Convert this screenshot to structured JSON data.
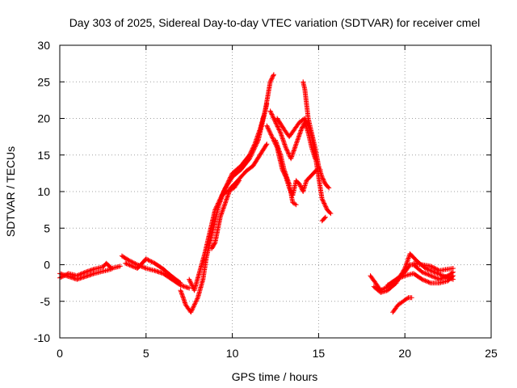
{
  "chart_data": {
    "type": "scatter",
    "title": "Day 303 of 2025, Sidereal Day-to-day VTEC variation (SDTVAR) for receiver cmel",
    "xlabel": "GPS time / hours",
    "ylabel": "SDTVAR / TECUs",
    "xlim": [
      0,
      25
    ],
    "ylim": [
      -10,
      30
    ],
    "xticks": [
      "0",
      "5",
      "10",
      "15",
      "20",
      "25"
    ],
    "yticks": [
      "-10",
      "-5",
      "0",
      "5",
      "10",
      "15",
      "20",
      "25",
      "30"
    ],
    "grid": true,
    "marker": "+",
    "series": [
      {
        "name": "SDTVAR",
        "color": "#ff0000",
        "tracks": [
          [
            [
              0.0,
              -1.8
            ],
            [
              0.5,
              -1.2
            ],
            [
              1.0,
              -1.5
            ],
            [
              1.5,
              -1.0
            ],
            [
              2.0,
              -0.6
            ],
            [
              2.5,
              -0.3
            ],
            [
              2.7,
              0.2
            ],
            [
              3.0,
              -0.5
            ],
            [
              3.5,
              -0.2
            ]
          ],
          [
            [
              0.0,
              -1.2
            ],
            [
              0.5,
              -1.6
            ],
            [
              1.0,
              -2.0
            ],
            [
              1.5,
              -1.6
            ],
            [
              2.0,
              -1.2
            ],
            [
              2.5,
              -0.9
            ],
            [
              3.0,
              -0.6
            ]
          ],
          [
            [
              3.6,
              1.2
            ],
            [
              4.0,
              0.6
            ],
            [
              4.5,
              0.0
            ],
            [
              5.0,
              -0.5
            ],
            [
              5.5,
              -0.8
            ],
            [
              6.0,
              -1.2
            ],
            [
              6.5,
              -2.0
            ],
            [
              7.0,
              -2.8
            ],
            [
              7.5,
              -3.2
            ]
          ],
          [
            [
              3.8,
              0.2
            ],
            [
              4.5,
              -0.5
            ],
            [
              5.0,
              0.8
            ],
            [
              5.5,
              0.2
            ],
            [
              6.0,
              -0.6
            ],
            [
              6.5,
              -1.6
            ],
            [
              7.0,
              -2.5
            ]
          ],
          [
            [
              7.0,
              -3.5
            ],
            [
              7.3,
              -5.5
            ],
            [
              7.6,
              -6.5
            ],
            [
              8.0,
              -4.5
            ],
            [
              8.3,
              -2.0
            ],
            [
              8.5,
              1.0
            ],
            [
              8.7,
              3.0
            ],
            [
              9.0,
              6.0
            ],
            [
              9.2,
              8.0
            ],
            [
              9.5,
              10.0
            ],
            [
              9.8,
              11.5
            ],
            [
              10.0,
              12.5
            ],
            [
              10.5,
              13.5
            ],
            [
              11.0,
              15.0
            ],
            [
              11.3,
              16.5
            ],
            [
              11.6,
              18.5
            ],
            [
              11.9,
              21.0
            ],
            [
              12.2,
              25.0
            ],
            [
              12.4,
              26.0
            ]
          ],
          [
            [
              7.5,
              -2.0
            ],
            [
              7.8,
              -3.5
            ],
            [
              8.1,
              -1.0
            ],
            [
              8.4,
              1.5
            ],
            [
              8.7,
              4.5
            ],
            [
              9.0,
              7.5
            ],
            [
              9.3,
              9.0
            ],
            [
              9.6,
              10.5
            ],
            [
              10.0,
              12.0
            ],
            [
              10.5,
              13.0
            ],
            [
              11.0,
              14.5
            ],
            [
              11.5,
              17.0
            ],
            [
              11.8,
              20.0
            ],
            [
              12.0,
              22.0
            ]
          ],
          [
            [
              8.8,
              2.2
            ],
            [
              9.0,
              3.0
            ],
            [
              9.3,
              6.5
            ],
            [
              9.6,
              8.5
            ],
            [
              9.9,
              10.5
            ],
            [
              10.2,
              11.2
            ],
            [
              10.5,
              12.0
            ],
            [
              10.8,
              12.8
            ],
            [
              11.2,
              13.5
            ],
            [
              11.6,
              15.0
            ],
            [
              12.0,
              16.5
            ]
          ],
          [
            [
              9.4,
              9.5
            ],
            [
              9.7,
              10.0
            ],
            [
              10.1,
              10.5
            ],
            [
              10.4,
              11.5
            ]
          ],
          [
            [
              12.0,
              19.0
            ],
            [
              12.3,
              17.5
            ],
            [
              12.6,
              16.0
            ],
            [
              12.9,
              13.0
            ],
            [
              13.1,
              12.0
            ],
            [
              13.3,
              10.5
            ],
            [
              13.5,
              9.5
            ],
            [
              13.7,
              11.5
            ],
            [
              13.9,
              11.0
            ],
            [
              14.1,
              10.0
            ],
            [
              14.3,
              11.5
            ],
            [
              14.5,
              12.0
            ],
            [
              14.7,
              12.5
            ],
            [
              14.9,
              13.0
            ],
            [
              15.1,
              13.0
            ]
          ],
          [
            [
              12.2,
              21.0
            ],
            [
              12.5,
              19.5
            ],
            [
              12.8,
              18.0
            ],
            [
              13.1,
              16.0
            ],
            [
              13.4,
              14.5
            ],
            [
              13.7,
              16.5
            ],
            [
              14.0,
              18.5
            ],
            [
              14.2,
              19.5
            ],
            [
              14.4,
              18.0
            ],
            [
              14.6,
              16.0
            ],
            [
              14.8,
              14.5
            ]
          ],
          [
            [
              12.5,
              17.0
            ],
            [
              12.8,
              15.0
            ],
            [
              13.0,
              13.0
            ],
            [
              13.3,
              11.0
            ],
            [
              13.5,
              8.5
            ],
            [
              13.7,
              8.2
            ]
          ],
          [
            [
              12.6,
              20.0
            ],
            [
              13.0,
              18.5
            ],
            [
              13.3,
              17.5
            ],
            [
              13.6,
              18.5
            ],
            [
              13.9,
              19.5
            ],
            [
              14.2,
              20.0
            ],
            [
              14.4,
              19.0
            ],
            [
              14.6,
              17.5
            ],
            [
              14.8,
              15.0
            ],
            [
              15.0,
              12.0
            ],
            [
              15.2,
              9.0
            ],
            [
              15.5,
              7.5
            ],
            [
              15.7,
              7.0
            ]
          ],
          [
            [
              14.1,
              25.0
            ],
            [
              14.2,
              24.0
            ],
            [
              14.3,
              22.0
            ],
            [
              14.4,
              20.0
            ],
            [
              14.6,
              18.0
            ],
            [
              14.8,
              16.0
            ],
            [
              15.0,
              13.5
            ],
            [
              15.2,
              12.0
            ],
            [
              15.4,
              11.0
            ],
            [
              15.6,
              10.5
            ]
          ],
          [
            [
              15.2,
              6.0
            ],
            [
              15.4,
              6.5
            ]
          ],
          [
            [
              18.0,
              -1.5
            ],
            [
              18.3,
              -2.5
            ],
            [
              18.6,
              -3.5
            ],
            [
              19.0,
              -3.0
            ],
            [
              19.5,
              -2.0
            ],
            [
              20.0,
              -1.0
            ],
            [
              20.3,
              0.0
            ],
            [
              20.5,
              0.0
            ],
            [
              21.0,
              -1.0
            ],
            [
              21.5,
              -1.5
            ],
            [
              22.0,
              -2.0
            ],
            [
              22.5,
              -1.5
            ],
            [
              22.8,
              -1.0
            ]
          ],
          [
            [
              18.2,
              -3.0
            ],
            [
              18.6,
              -3.8
            ],
            [
              19.0,
              -3.5
            ],
            [
              19.5,
              -2.5
            ],
            [
              20.0,
              -0.5
            ],
            [
              20.3,
              1.5
            ],
            [
              20.7,
              0.5
            ],
            [
              21.2,
              -0.5
            ],
            [
              21.7,
              -1.0
            ],
            [
              22.2,
              -1.5
            ],
            [
              22.8,
              -2.0
            ]
          ],
          [
            [
              19.0,
              -2.8
            ],
            [
              19.5,
              -2.0
            ],
            [
              20.0,
              -1.5
            ],
            [
              20.5,
              -1.2
            ],
            [
              21.0,
              -2.0
            ],
            [
              21.5,
              -2.5
            ],
            [
              22.0,
              -2.5
            ],
            [
              22.5,
              -2.2
            ],
            [
              22.8,
              -1.5
            ]
          ],
          [
            [
              19.3,
              -6.5
            ],
            [
              19.6,
              -5.5
            ],
            [
              19.9,
              -5.0
            ],
            [
              20.2,
              -4.5
            ],
            [
              20.4,
              -4.5
            ]
          ],
          [
            [
              20.5,
              0.2
            ],
            [
              21.0,
              0.0
            ],
            [
              21.5,
              -0.2
            ],
            [
              22.0,
              -0.8
            ],
            [
              22.5,
              -0.6
            ],
            [
              22.8,
              -0.5
            ]
          ]
        ]
      }
    ]
  }
}
